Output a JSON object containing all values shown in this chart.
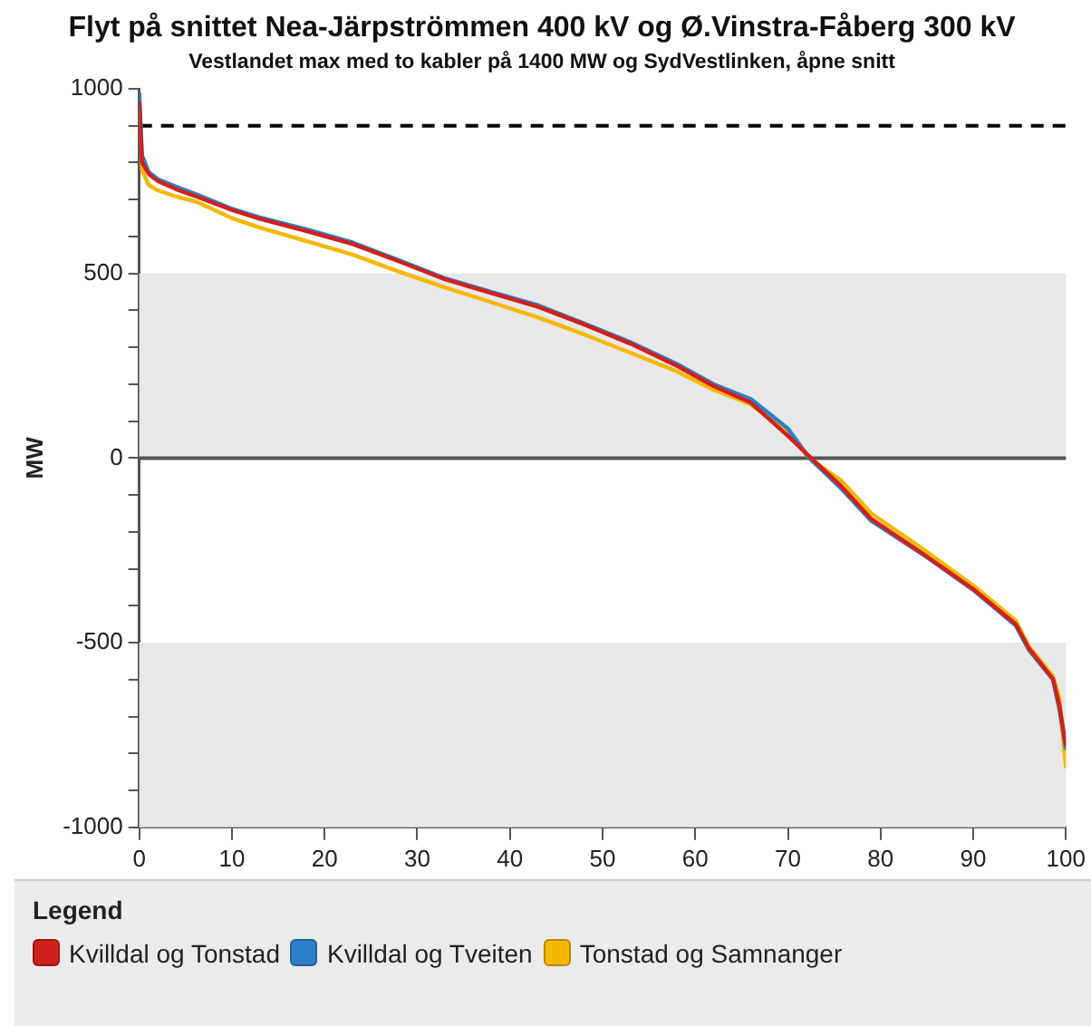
{
  "chart_data": {
    "type": "line",
    "title": "Flyt på snittet Nea-Järpströmmen 400 kV og Ø.Vinstra-Fåberg 300 kV",
    "subtitle": "Vestlandet max med to kabler på 1400 MW og SydVestlinken, åpne snitt",
    "ylabel": "MW",
    "legend_title": "Legend",
    "x": [
      0,
      0.3,
      1,
      2,
      4,
      6.2,
      10,
      13,
      18,
      23,
      28,
      33,
      38,
      43,
      48,
      53,
      58,
      62,
      66,
      70,
      72.3,
      75.7,
      79,
      84.5,
      90,
      94.6,
      96,
      98.6,
      99.3,
      100
    ],
    "series": [
      {
        "name": "Kvilldal og Tonstad",
        "color": "#d0211c",
        "values": [
          965,
          800,
          770,
          750,
          728,
          708,
          672,
          648,
          615,
          580,
          533,
          484,
          447,
          410,
          362,
          310,
          250,
          195,
          150,
          60,
          5,
          -75,
          -165,
          -258,
          -355,
          -450,
          -515,
          -598,
          -670,
          -780
        ]
      },
      {
        "name": "Kvilldal og Tveiten",
        "color": "#2f7fc8",
        "values": [
          990,
          820,
          775,
          755,
          735,
          714,
          675,
          652,
          620,
          584,
          536,
          487,
          450,
          414,
          365,
          314,
          255,
          200,
          160,
          80,
          0,
          -81,
          -170,
          -260,
          -357,
          -454,
          -519,
          -600,
          -681,
          -790
        ]
      },
      {
        "name": "Tonstad og Samnanger",
        "color": "#f5b800",
        "values": [
          950,
          780,
          740,
          725,
          708,
          694,
          650,
          624,
          588,
          551,
          505,
          462,
          422,
          381,
          335,
          285,
          235,
          185,
          145,
          70,
          0,
          -60,
          -150,
          -245,
          -345,
          -440,
          -510,
          -590,
          -650,
          -840
        ]
      }
    ],
    "xlim": [
      0,
      100
    ],
    "xticks": [
      0,
      10,
      20,
      30,
      40,
      50,
      60,
      70,
      80,
      90,
      100
    ],
    "ylim": [
      -1000,
      1000
    ],
    "yticks": [
      -1000,
      {
        "value": -900,
        "label": null
      },
      {
        "value": -800,
        "label": null
      },
      {
        "value": -700,
        "label": null
      },
      {
        "value": -600,
        "label": null
      },
      -500,
      {
        "value": -400,
        "label": null
      },
      {
        "value": -300,
        "label": null
      },
      {
        "value": -200,
        "label": null
      },
      {
        "value": -100,
        "label": null
      },
      0,
      {
        "value": 100,
        "label": null
      },
      {
        "value": 200,
        "label": null
      },
      {
        "value": 300,
        "label": null
      },
      {
        "value": 400,
        "label": null
      },
      500,
      {
        "value": 600,
        "label": null
      },
      {
        "value": 700,
        "label": null
      },
      {
        "value": 800,
        "label": null
      },
      {
        "value": 900,
        "label": null
      },
      1000
    ],
    "bands": [
      {
        "axis": "y",
        "from": 0,
        "to": 500,
        "color": "#e8e8e8"
      },
      {
        "axis": "y",
        "from": -1000,
        "to": -500,
        "color": "#e8e8e8"
      }
    ],
    "ref_lines": [
      {
        "axis": "y",
        "value": 900,
        "color": "#000000",
        "line_style": "dashed"
      },
      {
        "axis": "y",
        "value": 0,
        "color": "#555555",
        "line_style": "solid"
      }
    ],
    "grid": false,
    "legend": "bottom",
    "marker": "none",
    "line_style": "solid"
  }
}
